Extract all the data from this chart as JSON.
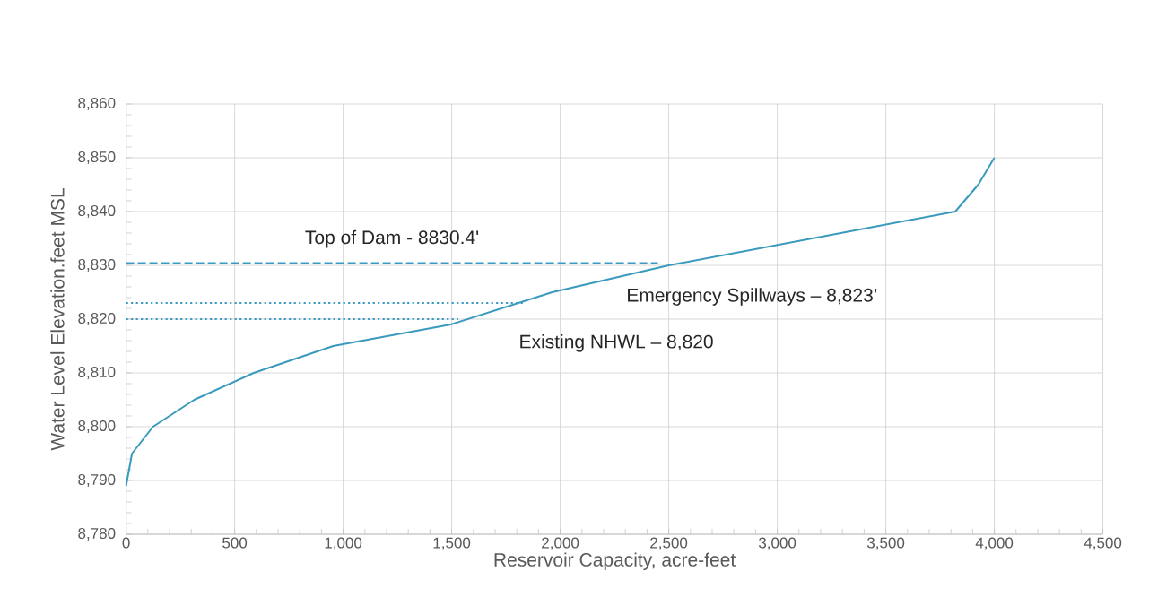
{
  "chart_data": {
    "type": "line",
    "xlabel": "Reservoir Capacity, acre-feet",
    "ylabel": "Water Level Elevation.feet MSL",
    "xlim": [
      0,
      4500
    ],
    "ylim": [
      8780,
      8860
    ],
    "xticks": [
      0,
      500,
      {
        "value": 1000,
        "label": "1,000"
      },
      {
        "value": 1500,
        "label": "1,500"
      },
      {
        "value": 2000,
        "label": "2,000"
      },
      {
        "value": 2500,
        "label": "2,500"
      },
      {
        "value": 3000,
        "label": "3,000"
      },
      {
        "value": 3500,
        "label": "3,500"
      },
      {
        "value": 4000,
        "label": "4,000"
      },
      {
        "value": 4500,
        "label": "4,500"
      }
    ],
    "yticks": [
      {
        "value": 8780,
        "label": "8,780"
      },
      {
        "value": 8790,
        "label": "8,790"
      },
      {
        "value": 8800,
        "label": "8,800"
      },
      {
        "value": 8810,
        "label": "8,810"
      },
      {
        "value": 8820,
        "label": "8,820"
      },
      {
        "value": 8830,
        "label": "8,830"
      },
      {
        "value": 8840,
        "label": "8,840"
      },
      {
        "value": 8850,
        "label": "8,850"
      },
      {
        "value": 8860,
        "label": "8,860"
      }
    ],
    "grid": true,
    "annotations": [
      "Emergency Spillways – 8,823’",
      "Existing NHWL – 8,820"
    ],
    "series": [
      {
        "color": "#3a9abd",
        "line_style": "solid",
        "x": [
          0,
          27,
          124,
          314,
          588,
          954,
          1496,
          1963,
          2500,
          3820,
          3926,
          4000
        ],
        "values": [
          8789,
          8795,
          8800,
          8805,
          8810,
          8815,
          8819,
          8825,
          8830,
          8840,
          8845,
          8850
        ]
      },
      {
        "name": "Top of Dam  - 8830.4'",
        "color": "#3a9ac4",
        "line_style": "dashed",
        "x": [
          0,
          2450
        ],
        "values": [
          8830.4,
          8830.4
        ]
      },
      {
        "color": "#3a9ac4",
        "line_style": "dotted",
        "x": [
          0,
          1830
        ],
        "values": [
          8823,
          8823
        ]
      },
      {
        "color": "#3a9ac4",
        "line_style": "dotted",
        "x": [
          0,
          1530
        ],
        "values": [
          8820,
          8820
        ]
      }
    ]
  }
}
